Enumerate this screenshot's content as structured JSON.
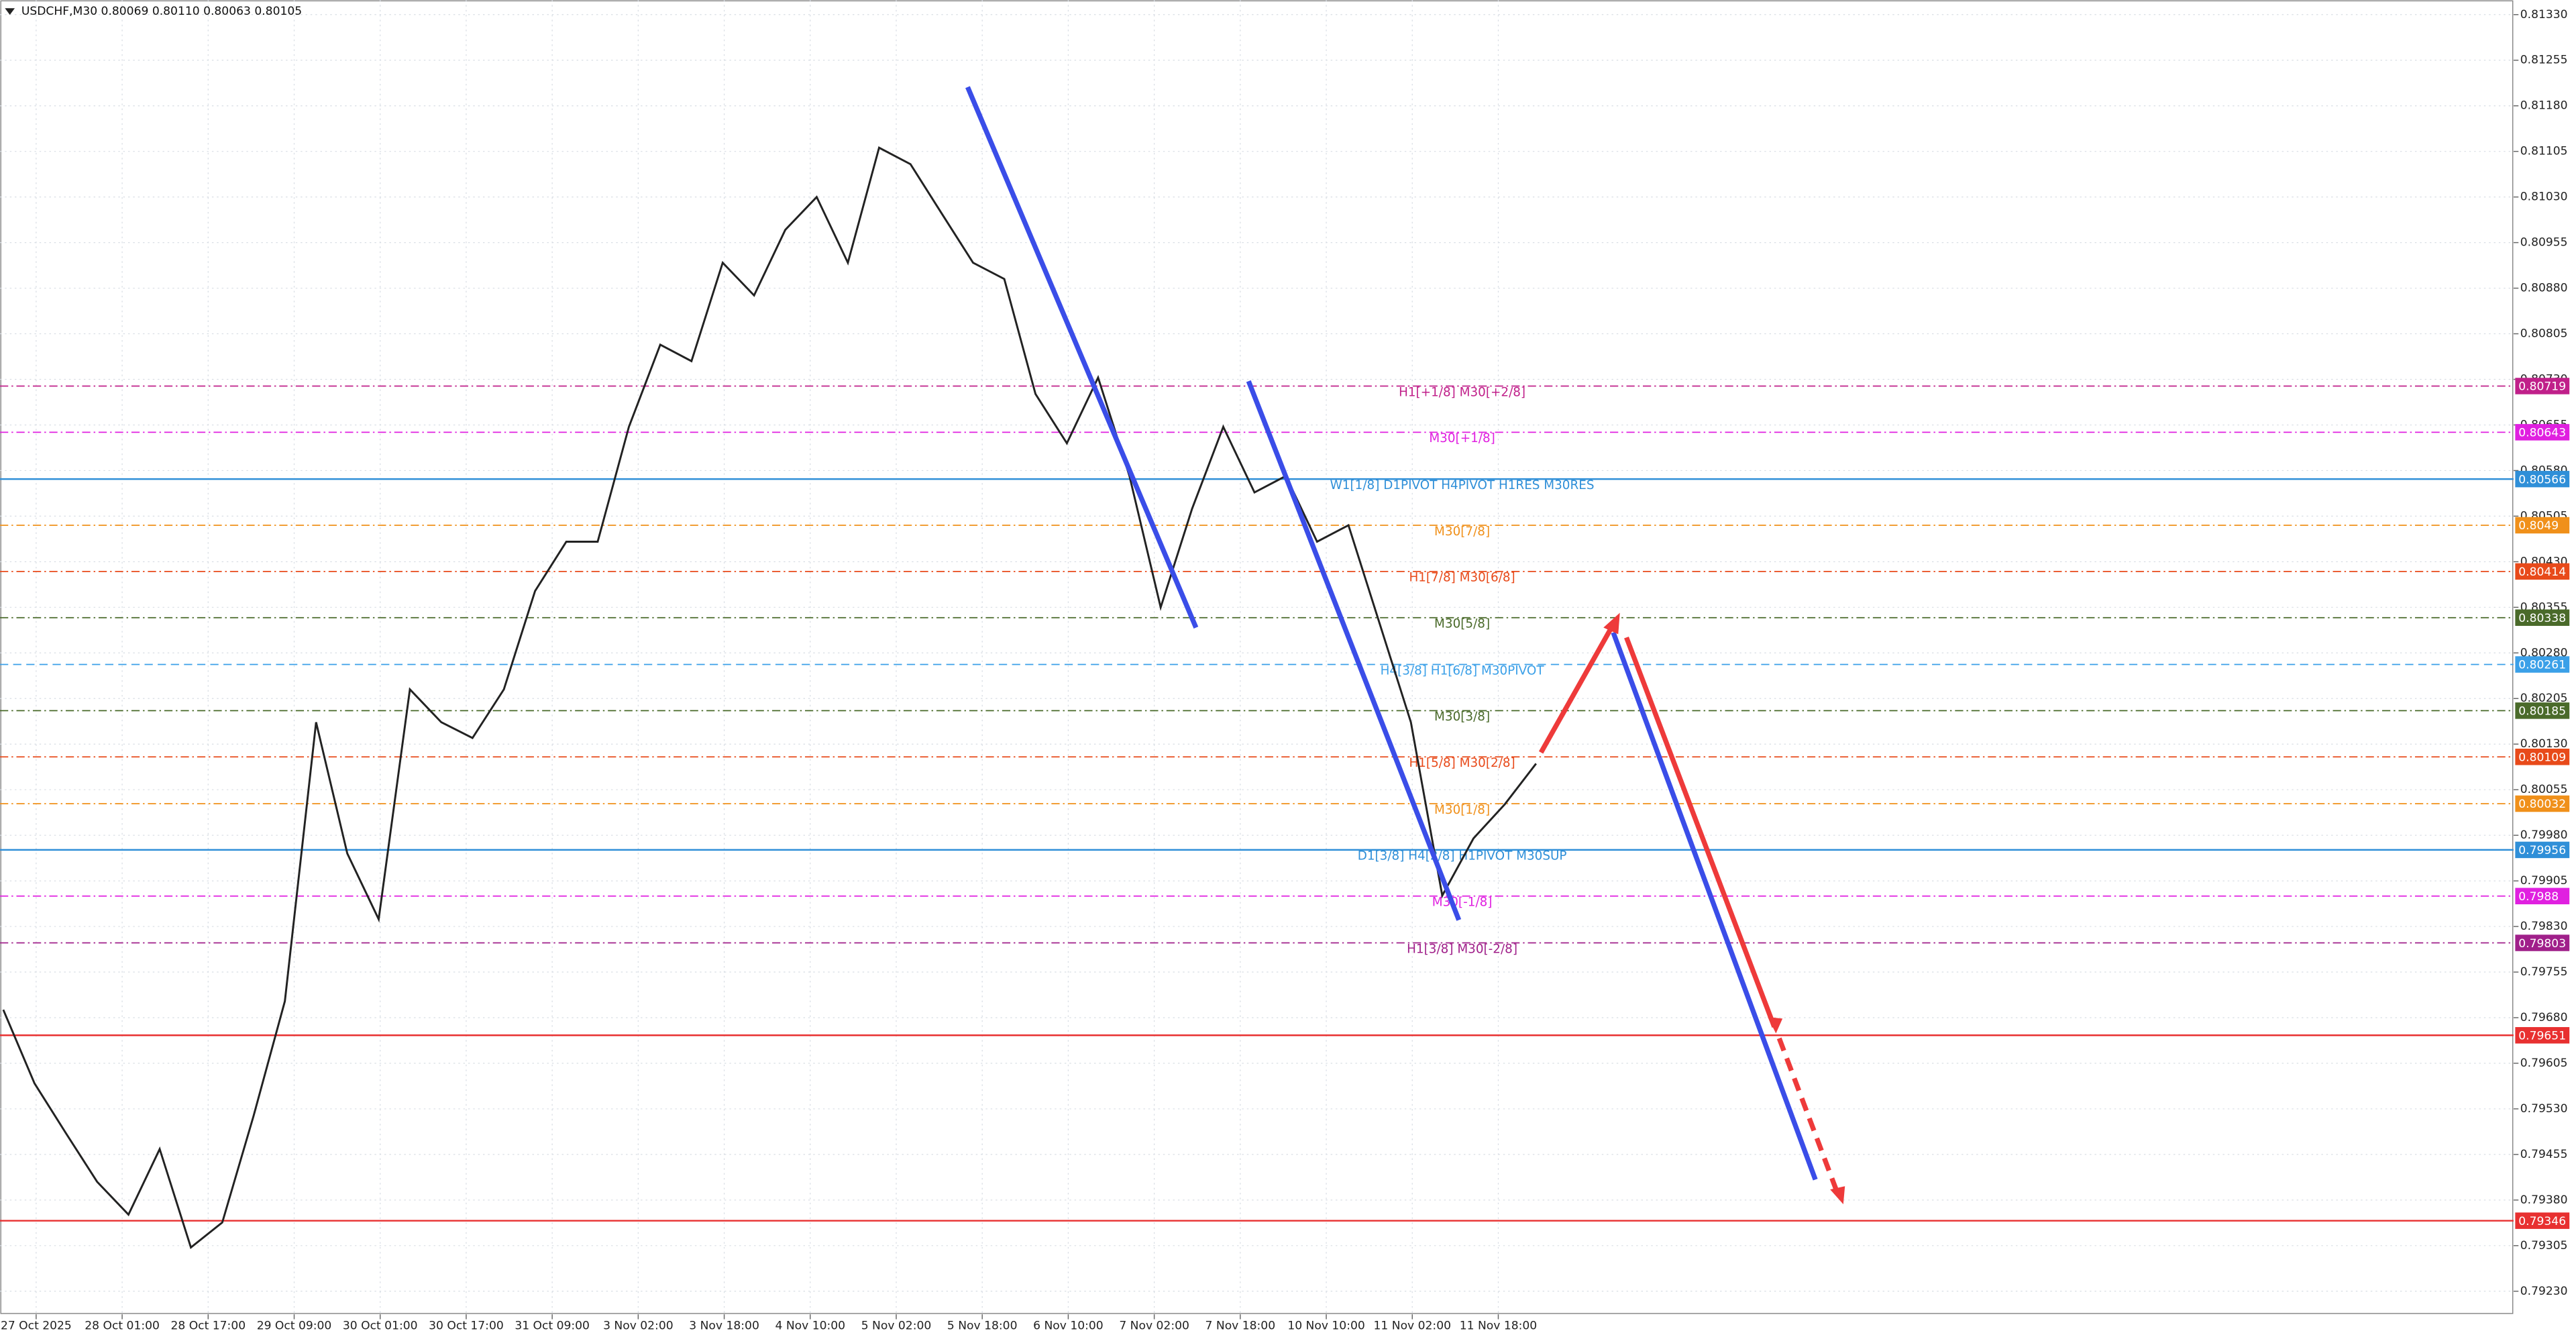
{
  "chart_data": {
    "type": "line",
    "title": "USDCHF,M30  0.80069 0.80110 0.80063 0.80105",
    "color": "#222222",
    "grid": true,
    "ylim": [
      0.79192,
      0.81354
    ],
    "yticks": [
      {
        "value": 0.8133,
        "label": "0.81330"
      },
      0.81255,
      {
        "value": 0.8118,
        "label": "0.81180"
      },
      0.81105,
      {
        "value": 0.8103,
        "label": "0.81030"
      },
      0.80955,
      {
        "value": 0.8088,
        "label": "0.80880"
      },
      0.80805,
      {
        "value": 0.8073,
        "label": "0.80730"
      },
      0.80655,
      {
        "value": 0.8058,
        "label": "0.80580"
      },
      0.80505,
      {
        "value": 0.8043,
        "label": "0.80430"
      },
      0.80355,
      {
        "value": 0.8028,
        "label": "0.80280"
      },
      0.80205,
      {
        "value": 0.8013,
        "label": "0.80130"
      },
      0.80055,
      {
        "value": 0.7998,
        "label": "0.79980"
      },
      0.79905,
      {
        "value": 0.7983,
        "label": "0.79830"
      },
      0.79755,
      {
        "value": 0.7968,
        "label": "0.79680"
      },
      0.79605,
      {
        "value": 0.7953,
        "label": "0.79530"
      },
      0.79455,
      {
        "value": 0.7938,
        "label": "0.79380"
      },
      0.79305,
      {
        "value": 0.7923,
        "label": "0.79230"
      }
    ],
    "x_tick_labels": [
      "27 Oct 2025",
      "28 Oct 01:00",
      "28 Oct 17:00",
      "29 Oct 09:00",
      "30 Oct 01:00",
      "30 Oct 17:00",
      "31 Oct 09:00",
      "3 Nov 02:00",
      "3 Nov 18:00",
      "4 Nov 10:00",
      "5 Nov 02:00",
      "5 Nov 18:00",
      "6 Nov 10:00",
      "7 Nov 02:00",
      "7 Nov 18:00",
      "10 Nov 10:00",
      "11 Nov 02:00",
      "11 Nov 18:00"
    ],
    "values": [
      0.79693,
      0.79572,
      0.7949,
      0.7941,
      0.79356,
      0.79464,
      0.79302,
      0.79343,
      0.79518,
      0.79707,
      0.80166,
      0.7995,
      0.79842,
      0.8022,
      0.80166,
      0.8014,
      0.8022,
      0.80382,
      0.80463,
      0.80463,
      0.80652,
      0.80787,
      0.8076,
      0.80922,
      0.80868,
      0.80976,
      0.8103,
      0.80922,
      0.81111,
      0.81084,
      0.81003,
      0.80922,
      0.80895,
      0.80706,
      0.80625,
      0.80733,
      0.80571,
      0.80355,
      0.80517,
      0.80652,
      0.80544,
      0.80571,
      0.80463,
      0.8049,
      0.80328,
      0.80166,
      0.79881,
      0.79975,
      0.80031,
      0.80098
    ],
    "levels": [
      {
        "price": 0.80719,
        "label": "H1[+1/8] M30[+2/8]",
        "color": "#c0208a",
        "style": "dashdot"
      },
      {
        "price": 0.80643,
        "label": "M30[+1/8]",
        "color": "#e020e0",
        "style": "dashdot"
      },
      {
        "price": 0.80566,
        "label": "W1[1/8] D1PIVOT H4PIVOT H1RES M30RES",
        "color": "#2f8fd8",
        "style": "solid"
      },
      {
        "price": 0.8049,
        "label": "M30[7/8]",
        "color": "#f0901a",
        "style": "dashdot"
      },
      {
        "price": 0.80414,
        "label": "H1[7/8] M30[6/8]",
        "color": "#e84a1a",
        "style": "dashdot"
      },
      {
        "price": 0.80338,
        "label": "M30[5/8]",
        "color": "#4a6a2a",
        "style": "dashdot"
      },
      {
        "price": 0.80261,
        "label": "H4[3/8] H1[6/8] M30PIVOT",
        "color": "#3ba0e8",
        "style": "dashed"
      },
      {
        "price": 0.80185,
        "label": "M30[3/8]",
        "color": "#4a6a2a",
        "style": "dashdot"
      },
      {
        "price": 0.80109,
        "label": "H1[5/8] M30[2/8]",
        "color": "#e84a1a",
        "style": "dashdot"
      },
      {
        "price": 0.80032,
        "label": "M30[1/8]",
        "color": "#f0901a",
        "style": "dashdot"
      },
      {
        "price": 0.79956,
        "label": "D1[3/8] H4[2/8] H1PIVOT M30SUP",
        "color": "#2f8fd8",
        "style": "solid"
      },
      {
        "price": 0.7988,
        "label": "M30[-1/8]",
        "color": "#e020e0",
        "style": "dashdot"
      },
      {
        "price": 0.79803,
        "label": "H1[3/8] M30[-2/8]",
        "color": "#a0208a",
        "style": "dashdot"
      },
      {
        "price": 0.79651,
        "color": "#e83030",
        "style": "solid"
      },
      {
        "price": 0.79346,
        "color": "#e83030",
        "style": "solid"
      }
    ]
  }
}
